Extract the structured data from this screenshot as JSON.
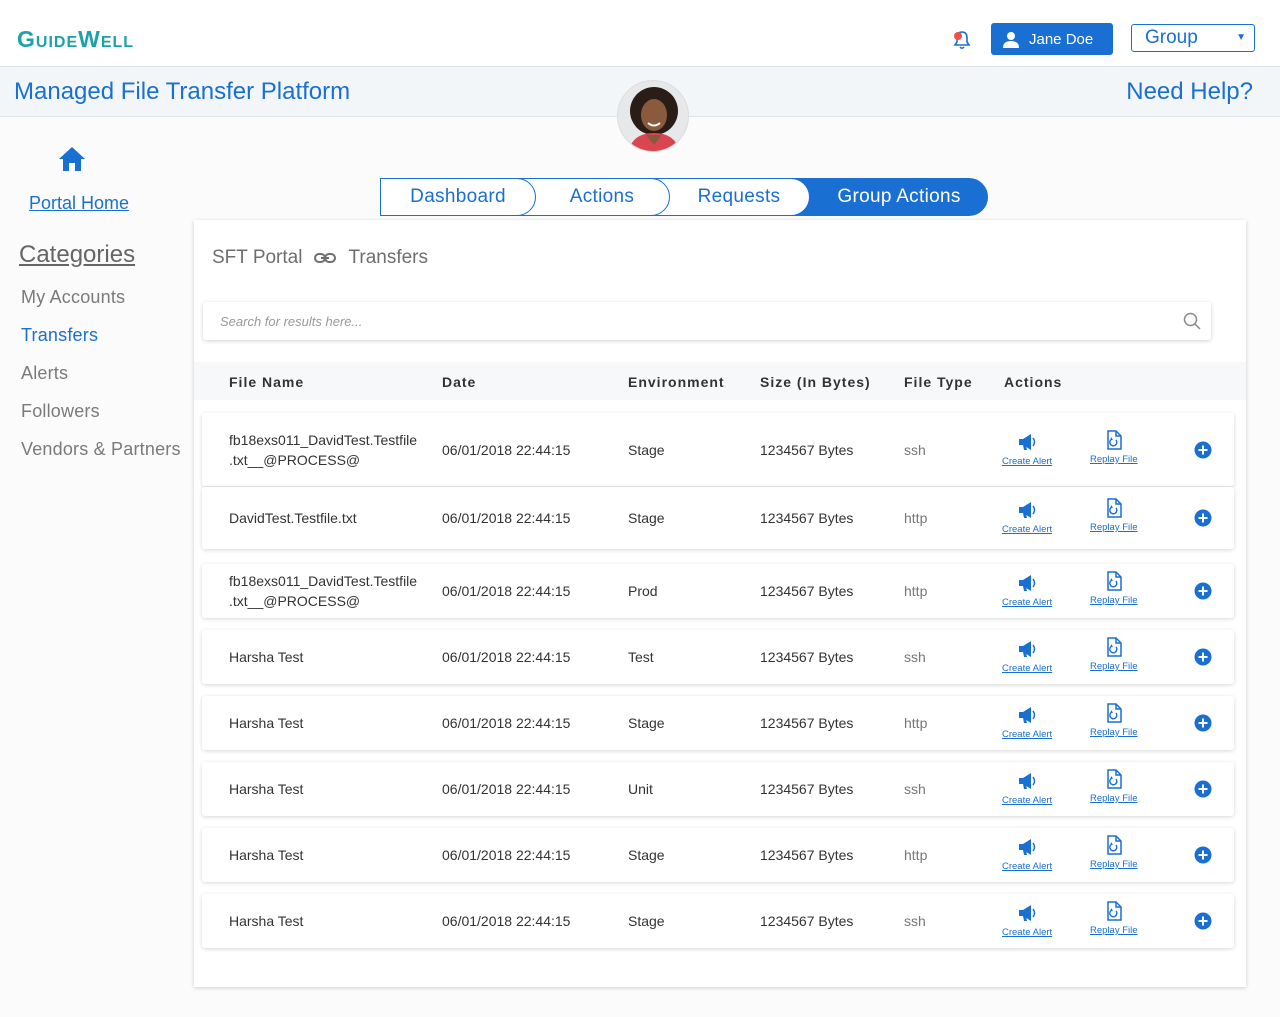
{
  "header": {
    "logo": "GuideWell",
    "user_label": "Jane Doe",
    "group_value": "Group"
  },
  "titlebar": {
    "title": "Managed File Transfer Platform",
    "help": "Need Help?"
  },
  "sidebar": {
    "home_label": "Portal Home",
    "categories_label": "Categories",
    "items": [
      {
        "label": "My Accounts",
        "active": false
      },
      {
        "label": "Transfers",
        "active": true
      },
      {
        "label": "Alerts",
        "active": false
      },
      {
        "label": "Followers",
        "active": false
      },
      {
        "label": "Vendors & Partners",
        "active": false
      }
    ]
  },
  "tabs": [
    {
      "label": "Dashboard"
    },
    {
      "label": "Actions"
    },
    {
      "label": "Requests"
    },
    {
      "label": "Group Actions",
      "active": true
    }
  ],
  "breadcrumb": {
    "root": "SFT Portal",
    "current": "Transfers"
  },
  "search": {
    "placeholder": "Search for results here..."
  },
  "table": {
    "columns": [
      "File Name",
      "Date",
      "Environment",
      "Size (In Bytes)",
      "File Type",
      "Actions"
    ],
    "create_alert_label": "Create Alert",
    "replay_file_label": "Replay File",
    "rows": [
      {
        "file_line1": "fb18exs011_DavidTest.Testfile",
        "file_line2": ".txt__@PROCESS@",
        "date": "06/01/2018 22:44:15",
        "environment": "Stage",
        "size": "1234567 Bytes",
        "file_type": "ssh"
      },
      {
        "file_line1": "DavidTest.Testfile.txt",
        "file_line2": "",
        "date": "06/01/2018 22:44:15",
        "environment": "Stage",
        "size": "1234567 Bytes",
        "file_type": "http"
      },
      {
        "file_line1": "fb18exs011_DavidTest.Testfile",
        "file_line2": ".txt__@PROCESS@",
        "date": "06/01/2018 22:44:15",
        "environment": "Prod",
        "size": "1234567 Bytes",
        "file_type": "http"
      },
      {
        "file_line1": "Harsha Test",
        "file_line2": "",
        "date": "06/01/2018 22:44:15",
        "environment": "Test",
        "size": "1234567 Bytes",
        "file_type": "ssh"
      },
      {
        "file_line1": "Harsha Test",
        "file_line2": "",
        "date": "06/01/2018 22:44:15",
        "environment": "Stage",
        "size": "1234567 Bytes",
        "file_type": "http"
      },
      {
        "file_line1": "Harsha Test",
        "file_line2": "",
        "date": "06/01/2018 22:44:15",
        "environment": "Unit",
        "size": "1234567 Bytes",
        "file_type": "ssh"
      },
      {
        "file_line1": "Harsha Test",
        "file_line2": "",
        "date": "06/01/2018 22:44:15",
        "environment": "Stage",
        "size": "1234567 Bytes",
        "file_type": "http"
      },
      {
        "file_line1": "Harsha Test",
        "file_line2": "",
        "date": "06/01/2018 22:44:15",
        "environment": "Stage",
        "size": "1234567 Bytes",
        "file_type": "ssh"
      }
    ]
  },
  "colors": {
    "brand_blue": "#1a6fd3",
    "logo_teal": "#1ba3a8",
    "notification_red": "#e8534b"
  },
  "icons": [
    "bell-icon",
    "user-icon",
    "chevron-down-icon",
    "home-icon",
    "link-icon",
    "search-icon",
    "megaphone-icon",
    "replay-file-icon",
    "plus-circle-icon"
  ]
}
